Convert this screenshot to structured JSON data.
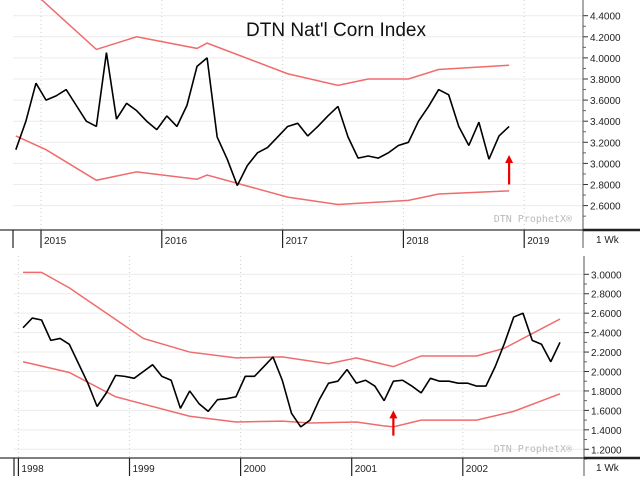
{
  "chart_data": [
    {
      "type": "line",
      "title": "DTN Nat'l Corn Index",
      "watermark": "DTN ProphetX®",
      "interval_label": "1 Wk",
      "x_ticks": [
        "2015",
        "2016",
        "2017",
        "2018",
        "2019"
      ],
      "y_ticks": [
        "2.6000",
        "2.8000",
        "3.0000",
        "3.2000",
        "3.4000",
        "3.6000",
        "3.8000",
        "4.0000",
        "4.2000",
        "4.4000"
      ],
      "ylim": [
        2.37,
        4.55
      ],
      "grid": true,
      "colors": {
        "price": "#000000",
        "bands": "#f06b6b",
        "arrow": "#ee0000"
      },
      "price": {
        "start": "2014-10",
        "frequency": "monthly",
        "values": [
          3.13,
          3.4,
          3.76,
          3.6,
          3.64,
          3.7,
          3.55,
          3.4,
          3.35,
          4.05,
          3.42,
          3.57,
          3.5,
          3.4,
          3.32,
          3.45,
          3.35,
          3.55,
          3.92,
          4.0,
          3.25,
          3.04,
          2.79,
          2.98,
          3.1,
          3.15,
          3.25,
          3.35,
          3.38,
          3.26,
          3.35,
          3.45,
          3.54,
          3.25,
          3.05,
          3.07,
          3.05,
          3.1,
          3.17,
          3.2,
          3.4,
          3.54,
          3.7,
          3.65,
          3.35,
          3.17,
          3.39,
          3.04,
          3.26,
          3.35
        ]
      },
      "upper_band": [
        [
          "2014-12",
          4.6
        ],
        [
          "2015-06",
          4.08
        ],
        [
          "2015-10",
          4.2
        ],
        [
          "2016-04",
          4.09
        ],
        [
          "2016-05",
          4.14
        ],
        [
          "2017-01",
          3.85
        ],
        [
          "2017-06",
          3.74
        ],
        [
          "2017-09",
          3.8
        ],
        [
          "2018-01",
          3.8
        ],
        [
          "2018-04",
          3.89
        ],
        [
          "2018-11",
          3.93
        ]
      ],
      "lower_band": [
        [
          "2014-10",
          3.26
        ],
        [
          "2015-01",
          3.13
        ],
        [
          "2015-06",
          2.84
        ],
        [
          "2015-10",
          2.92
        ],
        [
          "2016-04",
          2.85
        ],
        [
          "2016-05",
          2.89
        ],
        [
          "2017-01",
          2.68
        ],
        [
          "2017-06",
          2.61
        ],
        [
          "2018-01",
          2.65
        ],
        [
          "2018-04",
          2.71
        ],
        [
          "2018-11",
          2.74
        ]
      ],
      "arrow": {
        "date": "2018-11",
        "from": 2.8,
        "to": 3.08
      }
    },
    {
      "type": "line",
      "watermark": "DTN ProphetX®",
      "interval_label": "1 Wk",
      "x_ticks": [
        "1998",
        "1999",
        "2000",
        "2001",
        "2002"
      ],
      "y_ticks": [
        "1.2000",
        "1.4000",
        "1.6000",
        "1.8000",
        "2.0000",
        "2.2000",
        "2.4000",
        "2.6000",
        "2.8000",
        "3.0000"
      ],
      "ylim": [
        1.15,
        3.25
      ],
      "grid": true,
      "colors": {
        "price": "#000000",
        "bands": "#f06b6b",
        "arrow": "#ee0000"
      },
      "price": {
        "start": "1998-01",
        "frequency": "monthly",
        "values": [
          2.45,
          2.55,
          2.53,
          2.32,
          2.34,
          2.28,
          2.08,
          1.88,
          1.64,
          1.78,
          1.96,
          1.95,
          1.93,
          2.0,
          2.07,
          1.95,
          1.91,
          1.62,
          1.8,
          1.67,
          1.59,
          1.71,
          1.72,
          1.74,
          1.95,
          1.95,
          2.05,
          2.15,
          1.91,
          1.57,
          1.43,
          1.5,
          1.71,
          1.88,
          1.9,
          2.02,
          1.88,
          1.91,
          1.85,
          1.7,
          1.9,
          1.91,
          1.85,
          1.78,
          1.93,
          1.9,
          1.9,
          1.88,
          1.88,
          1.85,
          1.85,
          2.05,
          2.29,
          2.56,
          2.6,
          2.32,
          2.28,
          2.1,
          2.3
        ]
      },
      "upper_band": [
        [
          "1998-01",
          3.02
        ],
        [
          "1998-03",
          3.02
        ],
        [
          "1998-06",
          2.86
        ],
        [
          "1998-10",
          2.6
        ],
        [
          "1999-02",
          2.34
        ],
        [
          "1999-07",
          2.2
        ],
        [
          "1999-12",
          2.14
        ],
        [
          "2000-05",
          2.15
        ],
        [
          "2000-10",
          2.08
        ],
        [
          "2001-01",
          2.14
        ],
        [
          "2001-05",
          2.05
        ],
        [
          "2001-08",
          2.16
        ],
        [
          "2002-02",
          2.16
        ],
        [
          "2002-05",
          2.24
        ],
        [
          "2002-08",
          2.39
        ],
        [
          "2002-11",
          2.54
        ]
      ],
      "lower_band": [
        [
          "1998-01",
          2.1
        ],
        [
          "1998-06",
          1.99
        ],
        [
          "1998-11",
          1.74
        ],
        [
          "1999-07",
          1.54
        ],
        [
          "1999-12",
          1.48
        ],
        [
          "2000-05",
          1.49
        ],
        [
          "2000-08",
          1.47
        ],
        [
          "2001-01",
          1.48
        ],
        [
          "2001-04",
          1.44
        ],
        [
          "2001-05",
          1.43
        ],
        [
          "2001-08",
          1.5
        ],
        [
          "2002-02",
          1.5
        ],
        [
          "2002-06",
          1.59
        ],
        [
          "2002-11",
          1.77
        ]
      ],
      "arrow": {
        "date": "2001-05",
        "from": 1.34,
        "to": 1.6
      }
    }
  ]
}
